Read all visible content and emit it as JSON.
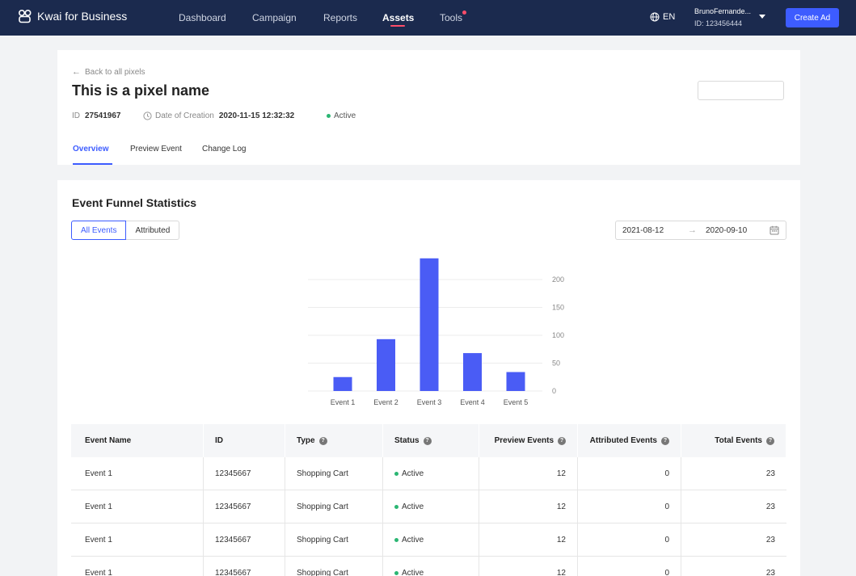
{
  "brand": {
    "name": "Kwai for Business"
  },
  "nav": {
    "items": [
      {
        "label": "Dashboard"
      },
      {
        "label": "Campaign"
      },
      {
        "label": "Reports"
      },
      {
        "label": "Assets"
      },
      {
        "label": "Tools"
      }
    ],
    "active_item": "Assets",
    "lang": "EN",
    "user_name": "BrunoFernande...",
    "user_id": "ID: 123456444",
    "create_label": "Create Ad"
  },
  "pixel": {
    "back_label": "Back to all pixels",
    "title": "This is a pixel name",
    "id_label": "ID",
    "id_value": "27541967",
    "created_label": "Date of Creation",
    "created_value": "2020-11-15 12:32:32",
    "status": "Active"
  },
  "tabs": [
    {
      "label": "Overview"
    },
    {
      "label": "Preview Event"
    },
    {
      "label": "Change Log"
    }
  ],
  "active_tab": "Overview",
  "funnel": {
    "title": "Event Funnel Statistics",
    "filters": [
      {
        "label": "All Events"
      },
      {
        "label": "Attributed"
      }
    ],
    "active_filter": "All Events",
    "date_start": "2021-08-12",
    "date_end": "2020-09-10"
  },
  "chart_data": {
    "type": "bar",
    "categories": [
      "Event 1",
      "Event 2",
      "Event 3",
      "Event 4",
      "Event 5"
    ],
    "values": [
      25,
      93,
      238,
      68,
      34
    ],
    "ylim": [
      0,
      200
    ],
    "yticks": [
      0,
      50,
      100,
      150,
      200
    ],
    "y_axis_side": "right",
    "grid": true,
    "bar_color": "#4a5cf5"
  },
  "table": {
    "columns": [
      {
        "label": "Event Name",
        "help": false
      },
      {
        "label": "ID",
        "help": false
      },
      {
        "label": "Type",
        "help": true
      },
      {
        "label": "Status",
        "help": true
      },
      {
        "label": "Preview Events",
        "help": true
      },
      {
        "label": "Attributed Events",
        "help": true
      },
      {
        "label": "Total Events",
        "help": true
      }
    ],
    "rows": [
      {
        "name": "Event 1",
        "id": "12345667",
        "type": "Shopping Cart",
        "status": "Active",
        "preview": "12",
        "attributed": "0",
        "total": "23"
      },
      {
        "name": "Event 1",
        "id": "12345667",
        "type": "Shopping Cart",
        "status": "Active",
        "preview": "12",
        "attributed": "0",
        "total": "23"
      },
      {
        "name": "Event 1",
        "id": "12345667",
        "type": "Shopping Cart",
        "status": "Active",
        "preview": "12",
        "attributed": "0",
        "total": "23"
      },
      {
        "name": "Event 1",
        "id": "12345667",
        "type": "Shopping Cart",
        "status": "Active",
        "preview": "12",
        "attributed": "0",
        "total": "23"
      }
    ]
  },
  "colors": {
    "nav_bg": "#1b2a4e",
    "accent": "#3d5cff",
    "active_status": "#2bb673",
    "alert_dot": "#ff4d6a"
  }
}
